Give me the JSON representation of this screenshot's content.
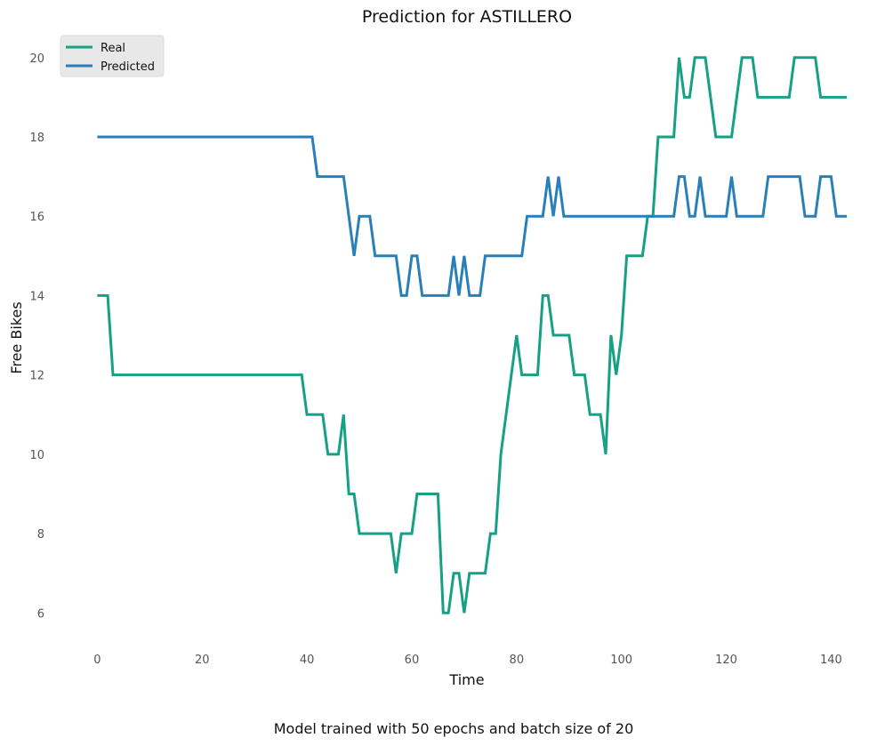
{
  "chart_data": {
    "type": "line",
    "title": "Prediction for ASTILLERO",
    "xlabel": "Time",
    "ylabel": "Free Bikes",
    "caption": "Model trained with 50 epochs and batch size of 20",
    "xlim": [
      -6,
      144
    ],
    "ylim": [
      5.2,
      20.6
    ],
    "xticks": [
      0,
      20,
      40,
      60,
      80,
      100,
      120,
      140
    ],
    "yticks": [
      6,
      8,
      10,
      12,
      14,
      16,
      18,
      20
    ],
    "grid": false,
    "legend_position": "top-left",
    "series": [
      {
        "name": "Real",
        "color": "#16a085",
        "points": [
          [
            0,
            14
          ],
          [
            2,
            14
          ],
          [
            3,
            12
          ],
          [
            39,
            12
          ],
          [
            40,
            11
          ],
          [
            43,
            11
          ],
          [
            44,
            10
          ],
          [
            46,
            10
          ],
          [
            47,
            11
          ],
          [
            48,
            9
          ],
          [
            49,
            9
          ],
          [
            50,
            8
          ],
          [
            56,
            8
          ],
          [
            57,
            7
          ],
          [
            58,
            8
          ],
          [
            60,
            8
          ],
          [
            61,
            9
          ],
          [
            65,
            9
          ],
          [
            66,
            6
          ],
          [
            67,
            6
          ],
          [
            68,
            7
          ],
          [
            69,
            7
          ],
          [
            70,
            6
          ],
          [
            71,
            7
          ],
          [
            74,
            7
          ],
          [
            75,
            8
          ],
          [
            76,
            8
          ],
          [
            77,
            10
          ],
          [
            78,
            11
          ],
          [
            79,
            12
          ],
          [
            80,
            13
          ],
          [
            81,
            12
          ],
          [
            84,
            12
          ],
          [
            85,
            14
          ],
          [
            86,
            14
          ],
          [
            87,
            13
          ],
          [
            90,
            13
          ],
          [
            91,
            12
          ],
          [
            93,
            12
          ],
          [
            94,
            11
          ],
          [
            96,
            11
          ],
          [
            97,
            10
          ],
          [
            98,
            13
          ],
          [
            99,
            12
          ],
          [
            100,
            13
          ],
          [
            101,
            15
          ],
          [
            104,
            15
          ],
          [
            105,
            16
          ],
          [
            106,
            16
          ],
          [
            107,
            18
          ],
          [
            110,
            18
          ],
          [
            111,
            20
          ],
          [
            112,
            19
          ],
          [
            113,
            19
          ],
          [
            114,
            20
          ],
          [
            116,
            20
          ],
          [
            117,
            19
          ],
          [
            118,
            18
          ],
          [
            121,
            18
          ],
          [
            122,
            19
          ],
          [
            123,
            20
          ],
          [
            125,
            20
          ],
          [
            126,
            19
          ],
          [
            132,
            19
          ],
          [
            133,
            20
          ],
          [
            137,
            20
          ],
          [
            138,
            19
          ],
          [
            143,
            19
          ]
        ]
      },
      {
        "name": "Predicted",
        "color": "#2980b9",
        "points": [
          [
            0,
            18
          ],
          [
            41,
            18
          ],
          [
            42,
            17
          ],
          [
            47,
            17
          ],
          [
            48,
            16
          ],
          [
            49,
            15
          ],
          [
            50,
            16
          ],
          [
            52,
            16
          ],
          [
            53,
            15
          ],
          [
            57,
            15
          ],
          [
            58,
            14
          ],
          [
            59,
            14
          ],
          [
            60,
            15
          ],
          [
            61,
            15
          ],
          [
            62,
            14
          ],
          [
            67,
            14
          ],
          [
            68,
            15
          ],
          [
            69,
            14
          ],
          [
            70,
            15
          ],
          [
            71,
            14
          ],
          [
            73,
            14
          ],
          [
            74,
            15
          ],
          [
            81,
            15
          ],
          [
            82,
            16
          ],
          [
            85,
            16
          ],
          [
            86,
            17
          ],
          [
            87,
            16
          ],
          [
            88,
            17
          ],
          [
            89,
            16
          ],
          [
            110,
            16
          ],
          [
            111,
            17
          ],
          [
            112,
            17
          ],
          [
            113,
            16
          ],
          [
            114,
            16
          ],
          [
            115,
            17
          ],
          [
            116,
            16
          ],
          [
            120,
            16
          ],
          [
            121,
            17
          ],
          [
            122,
            16
          ],
          [
            127,
            16
          ],
          [
            128,
            17
          ],
          [
            134,
            17
          ],
          [
            135,
            16
          ],
          [
            137,
            16
          ],
          [
            138,
            17
          ],
          [
            140,
            17
          ],
          [
            141,
            16
          ],
          [
            143,
            16
          ]
        ]
      }
    ]
  }
}
